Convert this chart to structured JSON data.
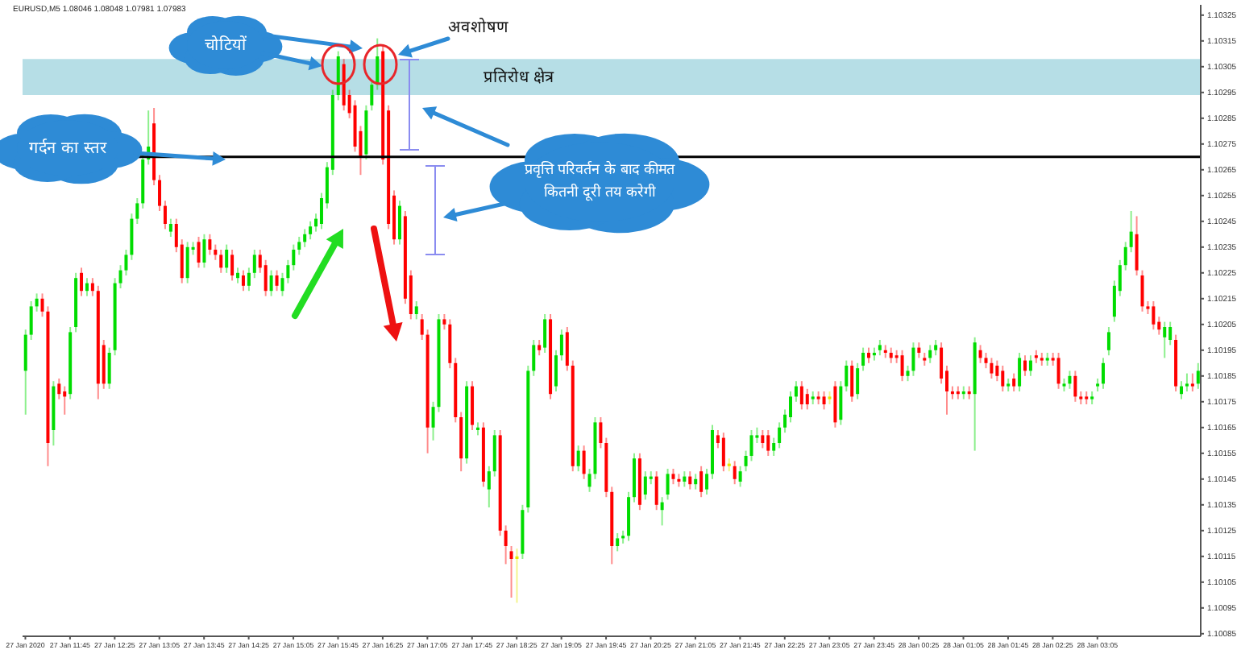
{
  "chart_data": {
    "type": "candlestick",
    "title": "EURUSD,M5  1.08046 1.08048 1.07981 1.07983",
    "categories": [
      "27 Jan 2020",
      null,
      null,
      null,
      null,
      null,
      null,
      null,
      "27 Jan 11:45",
      null,
      null,
      null,
      null,
      null,
      null,
      null,
      "27 Jan 12:25",
      null,
      null,
      null,
      null,
      null,
      null,
      null,
      "27 Jan 13:05",
      null,
      null,
      null,
      null,
      null,
      null,
      null,
      "27 Jan 13:45",
      null,
      null,
      null,
      null,
      null,
      null,
      null,
      "27 Jan 14:25",
      null,
      null,
      null,
      null,
      null,
      null,
      null,
      "27 Jan 15:05",
      null,
      null,
      null,
      null,
      null,
      null,
      null,
      "27 Jan 15:45",
      null,
      null,
      null,
      null,
      null,
      null,
      null,
      "27 Jan 16:25",
      null,
      null,
      null,
      null,
      null,
      null,
      null,
      "27 Jan 17:05",
      null,
      null,
      null,
      null,
      null,
      null,
      null,
      "27 Jan 17:45",
      null,
      null,
      null,
      null,
      null,
      null,
      null,
      "27 Jan 18:25",
      null,
      null,
      null,
      null,
      null,
      null,
      null,
      "27 Jan 19:05",
      null,
      null,
      null,
      null,
      null,
      null,
      null,
      "27 Jan 19:45",
      null,
      null,
      null,
      null,
      null,
      null,
      null,
      "27 Jan 20:25",
      null,
      null,
      null,
      null,
      null,
      null,
      null,
      "27 Jan 21:05",
      null,
      null,
      null,
      null,
      null,
      null,
      null,
      "27 Jan 21:45",
      null,
      null,
      null,
      null,
      null,
      null,
      null,
      "27 Jan 22:25",
      null,
      null,
      null,
      null,
      null,
      null,
      null,
      "27 Jan 23:05",
      null,
      null,
      null,
      null,
      null,
      null,
      null,
      "27 Jan 23:45",
      null,
      null,
      null,
      null,
      null,
      null,
      null,
      "28 Jan 00:25",
      null,
      null,
      null,
      null,
      null,
      null,
      null,
      "28 Jan 01:05",
      null,
      null,
      null,
      null,
      null,
      null,
      null,
      "28 Jan 01:45",
      null,
      null,
      null,
      null,
      null,
      null,
      null,
      "28 Jan 02:25",
      null,
      null,
      null,
      null,
      null,
      null,
      null,
      "28 Jan 03:05",
      null,
      null,
      null,
      null,
      null,
      null,
      null,
      null,
      null,
      null,
      null,
      null,
      null,
      null,
      null,
      null,
      null,
      null
    ],
    "ohlc": [
      [
        1.10187,
        1.10203,
        1.1017,
        1.10201
      ],
      [
        1.10201,
        1.10214,
        1.10199,
        1.10212
      ],
      [
        1.10212,
        1.10217,
        1.1021,
        1.10215
      ],
      [
        1.10215,
        1.10217,
        1.10208,
        1.1021
      ],
      [
        1.1021,
        1.10212,
        1.1015,
        1.10159
      ],
      [
        1.10164,
        1.10183,
        1.10158,
        1.10181
      ],
      [
        1.10182,
        1.10184,
        1.10176,
        1.10178
      ],
      [
        1.10179,
        1.10181,
        1.1017,
        1.10177
      ],
      [
        1.10178,
        1.10204,
        1.10176,
        1.10202
      ],
      [
        1.10204,
        1.10225,
        1.10202,
        1.10223
      ],
      [
        1.10225,
        1.10227,
        1.10216,
        1.10218
      ],
      [
        1.10218,
        1.10223,
        1.10216,
        1.10221
      ],
      [
        1.10221,
        1.10223,
        1.10216,
        1.10218
      ],
      [
        1.10218,
        1.1022,
        1.10176,
        1.10182
      ],
      [
        1.10197,
        1.10199,
        1.1018,
        1.10182
      ],
      [
        1.10182,
        1.10196,
        1.1018,
        1.10194
      ],
      [
        1.10195,
        1.10223,
        1.10193,
        1.10221
      ],
      [
        1.10221,
        1.10228,
        1.10219,
        1.10226
      ],
      [
        1.10226,
        1.10234,
        1.10224,
        1.10232
      ],
      [
        1.10232,
        1.10248,
        1.1023,
        1.10246
      ],
      [
        1.10246,
        1.10254,
        1.10244,
        1.10252
      ],
      [
        1.10252,
        1.10271,
        1.1025,
        1.10269
      ],
      [
        1.10269,
        1.10288,
        1.10267,
        1.10274
      ],
      [
        1.10283,
        1.10289,
        1.10259,
        1.10261
      ],
      [
        1.10261,
        1.10263,
        1.10249,
        1.10251
      ],
      [
        1.10251,
        1.10253,
        1.10242,
        1.10244
      ],
      [
        1.10241,
        1.10246,
        1.10239,
        1.10244
      ],
      [
        1.10244,
        1.10246,
        1.10233,
        1.10235
      ],
      [
        1.10236,
        1.10238,
        1.10221,
        1.10223
      ],
      [
        1.10223,
        1.10237,
        1.10221,
        1.10235
      ],
      [
        1.10234,
        1.10237,
        1.10232,
        1.10235
      ],
      [
        1.10237,
        1.10239,
        1.10227,
        1.10229
      ],
      [
        1.10229,
        1.1024,
        1.10227,
        1.10238
      ],
      [
        1.10238,
        1.1024,
        1.10232,
        1.10234
      ],
      [
        1.10234,
        1.10236,
        1.1023,
        1.10232
      ],
      [
        1.10232,
        1.10234,
        1.10225,
        1.10227
      ],
      [
        1.10227,
        1.10236,
        1.10225,
        1.10234
      ],
      [
        1.10232,
        1.10234,
        1.10222,
        1.10224
      ],
      [
        1.10223,
        1.10227,
        1.10221,
        1.10225
      ],
      [
        1.10224,
        1.10226,
        1.10218,
        1.1022
      ],
      [
        1.1022,
        1.10227,
        1.10218,
        1.10225
      ],
      [
        1.10225,
        1.10234,
        1.10223,
        1.10232
      ],
      [
        1.10232,
        1.10234,
        1.10225,
        1.10227
      ],
      [
        1.10228,
        1.1023,
        1.10216,
        1.10218
      ],
      [
        1.10218,
        1.10226,
        1.10216,
        1.10224
      ],
      [
        1.10224,
        1.10226,
        1.10218,
        1.1022
      ],
      [
        1.10218,
        1.10225,
        1.10216,
        1.10223
      ],
      [
        1.10223,
        1.1023,
        1.10221,
        1.10228
      ],
      [
        1.10228,
        1.10236,
        1.10226,
        1.10234
      ],
      [
        1.10234,
        1.10239,
        1.10232,
        1.10237
      ],
      [
        1.10237,
        1.10242,
        1.10235,
        1.1024
      ],
      [
        1.1024,
        1.10245,
        1.10238,
        1.10243
      ],
      [
        1.10243,
        1.10248,
        1.10241,
        1.10246
      ],
      [
        1.10244,
        1.10256,
        1.10242,
        1.10254
      ],
      [
        1.10252,
        1.10268,
        1.1025,
        1.10266
      ],
      [
        1.10265,
        1.10296,
        1.10263,
        1.10294
      ],
      [
        1.10294,
        1.10311,
        1.10292,
        1.10309
      ],
      [
        1.10306,
        1.10308,
        1.10288,
        1.1029
      ],
      [
        1.10294,
        1.10296,
        1.10285,
        1.10287
      ],
      [
        1.1029,
        1.10292,
        1.10272,
        1.10274
      ],
      [
        1.1028,
        1.10282,
        1.10263,
        1.1027
      ],
      [
        1.10271,
        1.1029,
        1.10269,
        1.10288
      ],
      [
        1.1029,
        1.103,
        1.10288,
        1.10298
      ],
      [
        1.10298,
        1.10316,
        1.10296,
        1.10309
      ],
      [
        1.10311,
        1.10313,
        1.10267,
        1.10269
      ],
      [
        1.10288,
        1.1029,
        1.10242,
        1.10244
      ],
      [
        1.10255,
        1.10257,
        1.10236,
        1.10238
      ],
      [
        1.10238,
        1.10253,
        1.10236,
        1.10251
      ],
      [
        1.10247,
        1.10249,
        1.10213,
        1.10215
      ],
      [
        1.10224,
        1.10226,
        1.10207,
        1.10209
      ],
      [
        1.10209,
        1.10214,
        1.10207,
        1.10212
      ],
      [
        1.10207,
        1.10209,
        1.10199,
        1.10201
      ],
      [
        1.10201,
        1.10203,
        1.10155,
        1.10165
      ],
      [
        1.10165,
        1.10175,
        1.1016,
        1.10173
      ],
      [
        1.10173,
        1.10209,
        1.10171,
        1.10207
      ],
      [
        1.10207,
        1.10209,
        1.10203,
        1.10205
      ],
      [
        1.10205,
        1.10207,
        1.10188,
        1.1019
      ],
      [
        1.1019,
        1.10192,
        1.10167,
        1.10169
      ],
      [
        1.10169,
        1.10171,
        1.10148,
        1.10153
      ],
      [
        1.10153,
        1.10183,
        1.10151,
        1.10181
      ],
      [
        1.10181,
        1.10183,
        1.10164,
        1.10166
      ],
      [
        1.10164,
        1.10167,
        1.10162,
        1.10165
      ],
      [
        1.10165,
        1.10167,
        1.10142,
        1.10144
      ],
      [
        1.10141,
        1.1015,
        1.10134,
        1.10148
      ],
      [
        1.10148,
        1.10164,
        1.10146,
        1.10162
      ],
      [
        1.10162,
        1.10164,
        1.10123,
        1.10125
      ],
      [
        1.10125,
        1.10127,
        1.10112,
        1.10119
      ],
      [
        1.10117,
        1.10119,
        1.10099,
        1.10114
      ],
      [
        1.10114,
        1.10118,
        1.10097,
        1.10115
      ],
      [
        1.10116,
        1.10135,
        1.10114,
        1.10133
      ],
      [
        1.10134,
        1.10189,
        1.10132,
        1.10187
      ],
      [
        1.10187,
        1.10199,
        1.10185,
        1.10197
      ],
      [
        1.10197,
        1.10199,
        1.10193,
        1.10195
      ],
      [
        1.10196,
        1.10209,
        1.10194,
        1.10207
      ],
      [
        1.10207,
        1.10209,
        1.10176,
        1.10178
      ],
      [
        1.10181,
        1.10195,
        1.10179,
        1.10193
      ],
      [
        1.10193,
        1.10203,
        1.10191,
        1.10201
      ],
      [
        1.10202,
        1.10204,
        1.10187,
        1.10189
      ],
      [
        1.10189,
        1.10191,
        1.10148,
        1.1015
      ],
      [
        1.1015,
        1.10158,
        1.10148,
        1.10156
      ],
      [
        1.10156,
        1.10158,
        1.10145,
        1.10147
      ],
      [
        1.10142,
        1.10149,
        1.1014,
        1.10147
      ],
      [
        1.10147,
        1.10169,
        1.10145,
        1.10167
      ],
      [
        1.10167,
        1.10169,
        1.10157,
        1.10159
      ],
      [
        1.10159,
        1.10161,
        1.10138,
        1.1014
      ],
      [
        1.1014,
        1.10142,
        1.10112,
        1.10119
      ],
      [
        1.10119,
        1.10124,
        1.10117,
        1.10122
      ],
      [
        1.10122,
        1.10125,
        1.1012,
        1.10123
      ],
      [
        1.10123,
        1.1014,
        1.10121,
        1.10138
      ],
      [
        1.10138,
        1.10155,
        1.10136,
        1.10153
      ],
      [
        1.10153,
        1.10155,
        1.10133,
        1.10135
      ],
      [
        1.10139,
        1.10148,
        1.10137,
        1.10146
      ],
      [
        1.10145,
        1.10148,
        1.10143,
        1.10146
      ],
      [
        1.10146,
        1.10148,
        1.10133,
        1.10135
      ],
      [
        1.10133,
        1.10138,
        1.10127,
        1.10136
      ],
      [
        1.10139,
        1.10149,
        1.10137,
        1.10147
      ],
      [
        1.10147,
        1.10149,
        1.10143,
        1.10145
      ],
      [
        1.10145,
        1.10147,
        1.10142,
        1.10144
      ],
      [
        1.10144,
        1.10148,
        1.10142,
        1.10146
      ],
      [
        1.10146,
        1.10148,
        1.10141,
        1.10143
      ],
      [
        1.10143,
        1.10147,
        1.10141,
        1.10145
      ],
      [
        1.10148,
        1.1015,
        1.10138,
        1.1014
      ],
      [
        1.10141,
        1.10149,
        1.10139,
        1.10147
      ],
      [
        1.10147,
        1.10166,
        1.10145,
        1.10164
      ],
      [
        1.10162,
        1.10164,
        1.10157,
        1.10159
      ],
      [
        1.10161,
        1.10163,
        1.10148,
        1.1015
      ],
      [
        1.1015,
        1.10153,
        1.10148,
        1.10151
      ],
      [
        1.1015,
        1.10152,
        1.10143,
        1.10145
      ],
      [
        1.10144,
        1.1015,
        1.10142,
        1.10148
      ],
      [
        1.1015,
        1.10156,
        1.10148,
        1.10154
      ],
      [
        1.10154,
        1.10164,
        1.10152,
        1.10162
      ],
      [
        1.10161,
        1.10165,
        1.10159,
        1.10162
      ],
      [
        1.10162,
        1.10164,
        1.10157,
        1.10159
      ],
      [
        1.10162,
        1.10164,
        1.10154,
        1.10156
      ],
      [
        1.10156,
        1.10161,
        1.10154,
        1.10159
      ],
      [
        1.10159,
        1.10167,
        1.10157,
        1.10165
      ],
      [
        1.10165,
        1.10172,
        1.10163,
        1.1017
      ],
      [
        1.10169,
        1.10179,
        1.10167,
        1.10177
      ],
      [
        1.10177,
        1.10183,
        1.10175,
        1.10181
      ],
      [
        1.10181,
        1.10183,
        1.10172,
        1.10174
      ],
      [
        1.10178,
        1.1018,
        1.10172,
        1.10174
      ],
      [
        1.10176,
        1.10179,
        1.10174,
        1.10177
      ],
      [
        1.10177,
        1.10179,
        1.10174,
        1.10176
      ],
      [
        1.10177,
        1.10179,
        1.10172,
        1.10174
      ],
      [
        1.10176,
        1.10179,
        1.10174,
        1.10177
      ],
      [
        1.10181,
        1.10183,
        1.10165,
        1.10167
      ],
      [
        1.10168,
        1.10183,
        1.10166,
        1.10181
      ],
      [
        1.10181,
        1.10191,
        1.10179,
        1.10189
      ],
      [
        1.10189,
        1.10191,
        1.10175,
        1.10177
      ],
      [
        1.10178,
        1.1019,
        1.10176,
        1.10188
      ],
      [
        1.10189,
        1.10196,
        1.10187,
        1.10194
      ],
      [
        1.10194,
        1.10196,
        1.1019,
        1.10192
      ],
      [
        1.10193,
        1.10196,
        1.10191,
        1.10194
      ],
      [
        1.10195,
        1.10199,
        1.10193,
        1.10197
      ],
      [
        1.10195,
        1.10197,
        1.10192,
        1.10194
      ],
      [
        1.10194,
        1.10196,
        1.1019,
        1.10192
      ],
      [
        1.10193,
        1.10195,
        1.1019,
        1.10192
      ],
      [
        1.10193,
        1.10195,
        1.10183,
        1.10185
      ],
      [
        1.10185,
        1.10189,
        1.10183,
        1.10187
      ],
      [
        1.10187,
        1.10198,
        1.10185,
        1.10196
      ],
      [
        1.10196,
        1.10198,
        1.10192,
        1.10194
      ],
      [
        1.10192,
        1.10194,
        1.10189,
        1.10191
      ],
      [
        1.10192,
        1.10197,
        1.1019,
        1.10195
      ],
      [
        1.10195,
        1.10199,
        1.10193,
        1.10197
      ],
      [
        1.10196,
        1.10198,
        1.10182,
        1.10184
      ],
      [
        1.10187,
        1.10189,
        1.1017,
        1.10179
      ],
      [
        1.10179,
        1.10181,
        1.10176,
        1.10178
      ],
      [
        1.10179,
        1.10181,
        1.10176,
        1.10178
      ],
      [
        1.10178,
        1.10181,
        1.10176,
        1.10179
      ],
      [
        1.10179,
        1.10181,
        1.10176,
        1.10178
      ],
      [
        1.10178,
        1.102,
        1.10156,
        1.10198
      ],
      [
        1.10195,
        1.10197,
        1.1019,
        1.10192
      ],
      [
        1.10192,
        1.10194,
        1.10188,
        1.1019
      ],
      [
        1.1019,
        1.10192,
        1.10184,
        1.10186
      ],
      [
        1.10189,
        1.10191,
        1.10183,
        1.10185
      ],
      [
        1.10187,
        1.10189,
        1.10179,
        1.10181
      ],
      [
        1.10181,
        1.10184,
        1.10179,
        1.10182
      ],
      [
        1.10184,
        1.10186,
        1.10179,
        1.10181
      ],
      [
        1.10181,
        1.10194,
        1.10179,
        1.10192
      ],
      [
        1.10191,
        1.10193,
        1.10185,
        1.10187
      ],
      [
        1.10187,
        1.10193,
        1.10185,
        1.10191
      ],
      [
        1.10193,
        1.10195,
        1.1019,
        1.10192
      ],
      [
        1.10192,
        1.10194,
        1.10189,
        1.10191
      ],
      [
        1.10191,
        1.10194,
        1.10189,
        1.10192
      ],
      [
        1.10192,
        1.10194,
        1.10189,
        1.10191
      ],
      [
        1.10192,
        1.10194,
        1.1018,
        1.10182
      ],
      [
        1.10181,
        1.10184,
        1.10179,
        1.10182
      ],
      [
        1.10182,
        1.10187,
        1.1018,
        1.10185
      ],
      [
        1.10185,
        1.10187,
        1.10175,
        1.10177
      ],
      [
        1.10177,
        1.10179,
        1.10174,
        1.10176
      ],
      [
        1.10177,
        1.10179,
        1.10174,
        1.10176
      ],
      [
        1.10176,
        1.10179,
        1.10174,
        1.10177
      ],
      [
        1.10181,
        1.10184,
        1.10179,
        1.10182
      ],
      [
        1.10182,
        1.10192,
        1.1018,
        1.1019
      ],
      [
        1.10195,
        1.10204,
        1.10193,
        1.10202
      ],
      [
        1.10208,
        1.10222,
        1.10206,
        1.1022
      ],
      [
        1.10218,
        1.1023,
        1.10216,
        1.10228
      ],
      [
        1.10228,
        1.10237,
        1.10226,
        1.10235
      ],
      [
        1.10235,
        1.10249,
        1.10233,
        1.10241
      ],
      [
        1.1024,
        1.10247,
        1.10224,
        1.10226
      ],
      [
        1.10224,
        1.10226,
        1.1021,
        1.10212
      ],
      [
        1.10212,
        1.10214,
        1.10209,
        1.10211
      ],
      [
        1.10212,
        1.10214,
        1.10203,
        1.10205
      ],
      [
        1.10206,
        1.10208,
        1.10201,
        1.10203
      ],
      [
        1.102,
        1.10206,
        1.10192,
        1.10204
      ],
      [
        1.10199,
        1.10206,
        1.10197,
        1.10204
      ],
      [
        1.10199,
        1.10201,
        1.10179,
        1.10181
      ],
      [
        1.10178,
        1.10183,
        1.10176,
        1.10181
      ],
      [
        1.10181,
        1.10186,
        1.10179,
        1.10182
      ],
      [
        1.10182,
        1.10186,
        1.10179,
        1.10181
      ],
      [
        1.10182,
        1.1019,
        1.1018,
        1.10187
      ]
    ],
    "colors": [
      "#00dc00",
      "#00dc00",
      "#00dc00",
      "#ff0000",
      "#ff0000",
      "#00dc00",
      "#ff0000",
      "#ff0000",
      "#00dc00",
      "#00dc00",
      "#ff0000",
      "#00dc00",
      "#ff0000",
      "#ff0000",
      "#ff0000",
      "#00dc00",
      "#00dc00",
      "#00dc00",
      "#00dc00",
      "#00dc00",
      "#00dc00",
      "#00dc00",
      "#00dc00",
      "#ff0000",
      "#ff0000",
      "#ff0000",
      "#00dc00",
      "#ff0000",
      "#ff0000",
      "#00dc00",
      "#00dc00",
      "#ff0000",
      "#00dc00",
      "#ff0000",
      "#ff0000",
      "#ff0000",
      "#00dc00",
      "#ff0000",
      "#00dc00",
      "#ff0000",
      "#00dc00",
      "#00dc00",
      "#ff0000",
      "#ff0000",
      "#00dc00",
      "#ff0000",
      "#00dc00",
      "#00dc00",
      "#00dc00",
      "#00dc00",
      "#00dc00",
      "#00dc00",
      "#00dc00",
      "#00dc00",
      "#00dc00",
      "#00dc00",
      "#00dc00",
      "#ff0000",
      "#ff0000",
      "#ff0000",
      "#ff0000",
      "#00dc00",
      "#00dc00",
      "#00dc00",
      "#ff0000",
      "#ff0000",
      "#ff0000",
      "#00dc00",
      "#ff0000",
      "#ff0000",
      "#00dc00",
      "#ff0000",
      "#ff0000",
      "#00dc00",
      "#00dc00",
      "#ff0000",
      "#ff0000",
      "#ff0000",
      "#ff0000",
      "#00dc00",
      "#ff0000",
      "#00dc00",
      "#ff0000",
      "#00dc00",
      "#00dc00",
      "#ff0000",
      "#ff0000",
      "#ff0000",
      "#e6e600",
      "#00dc00",
      "#00dc00",
      "#00dc00",
      "#ff0000",
      "#00dc00",
      "#ff0000",
      "#00dc00",
      "#00dc00",
      "#ff0000",
      "#ff0000",
      "#00dc00",
      "#ff0000",
      "#00dc00",
      "#00dc00",
      "#ff0000",
      "#ff0000",
      "#ff0000",
      "#00dc00",
      "#00dc00",
      "#00dc00",
      "#00dc00",
      "#ff0000",
      "#00dc00",
      "#00dc00",
      "#ff0000",
      "#00dc00",
      "#00dc00",
      "#ff0000",
      "#ff0000",
      "#00dc00",
      "#ff0000",
      "#00dc00",
      "#ff0000",
      "#00dc00",
      "#00dc00",
      "#ff0000",
      "#ff0000",
      "#e6e600",
      "#ff0000",
      "#00dc00",
      "#00dc00",
      "#00dc00",
      "#00dc00",
      "#ff0000",
      "#ff0000",
      "#00dc00",
      "#00dc00",
      "#00dc00",
      "#00dc00",
      "#00dc00",
      "#ff0000",
      "#ff0000",
      "#00dc00",
      "#ff0000",
      "#ff0000",
      "#e6e600",
      "#ff0000",
      "#00dc00",
      "#00dc00",
      "#ff0000",
      "#00dc00",
      "#00dc00",
      "#ff0000",
      "#00dc00",
      "#00dc00",
      "#ff0000",
      "#ff0000",
      "#ff0000",
      "#ff0000",
      "#00dc00",
      "#00dc00",
      "#ff0000",
      "#ff0000",
      "#00dc00",
      "#00dc00",
      "#ff0000",
      "#ff0000",
      "#ff0000",
      "#ff0000",
      "#00dc00",
      "#ff0000",
      "#00dc00",
      "#ff0000",
      "#ff0000",
      "#ff0000",
      "#ff0000",
      "#ff0000",
      "#00dc00",
      "#ff0000",
      "#00dc00",
      "#ff0000",
      "#00dc00",
      "#ff0000",
      "#ff0000",
      "#00dc00",
      "#ff0000",
      "#ff0000",
      "#00dc00",
      "#00dc00",
      "#ff0000",
      "#ff0000",
      "#ff0000",
      "#00dc00",
      "#00dc00",
      "#00dc00",
      "#00dc00",
      "#00dc00",
      "#00dc00",
      "#00dc00",
      "#00dc00",
      "#ff0000",
      "#ff0000",
      "#ff0000",
      "#ff0000",
      "#ff0000",
      "#00dc00",
      "#00dc00",
      "#ff0000",
      "#00dc00",
      "#00dc00",
      "#ff0000",
      "#00dc00"
    ],
    "ylim": [
      1.10084,
      1.10329
    ],
    "yticks": [
      1.10085,
      1.10095,
      1.10105,
      1.10115,
      1.10125,
      1.10135,
      1.10145,
      1.10155,
      1.10165,
      1.10175,
      1.10185,
      1.10195,
      1.10205,
      1.10215,
      1.10225,
      1.10235,
      1.10245,
      1.10255,
      1.10265,
      1.10275,
      1.10285,
      1.10295,
      1.10305,
      1.10315,
      1.10325
    ],
    "bands": [
      {
        "axis": "y",
        "from": 1.10294,
        "to": 1.10308,
        "label": "प्रतिरोध क्षेत्र",
        "color": "#a9d8e2"
      }
    ],
    "ref_lines": [
      {
        "axis": "y",
        "value": 1.1027,
        "label": "गर्दन का स्तर",
        "color": "#000000"
      }
    ],
    "annotations": [
      "चोटियों",
      "अवशोषण",
      "प्रवृत्ति परिवर्तन के बाद कीमत कितनी दूरी तय करेगी"
    ],
    "grid": false,
    "legend": false
  }
}
